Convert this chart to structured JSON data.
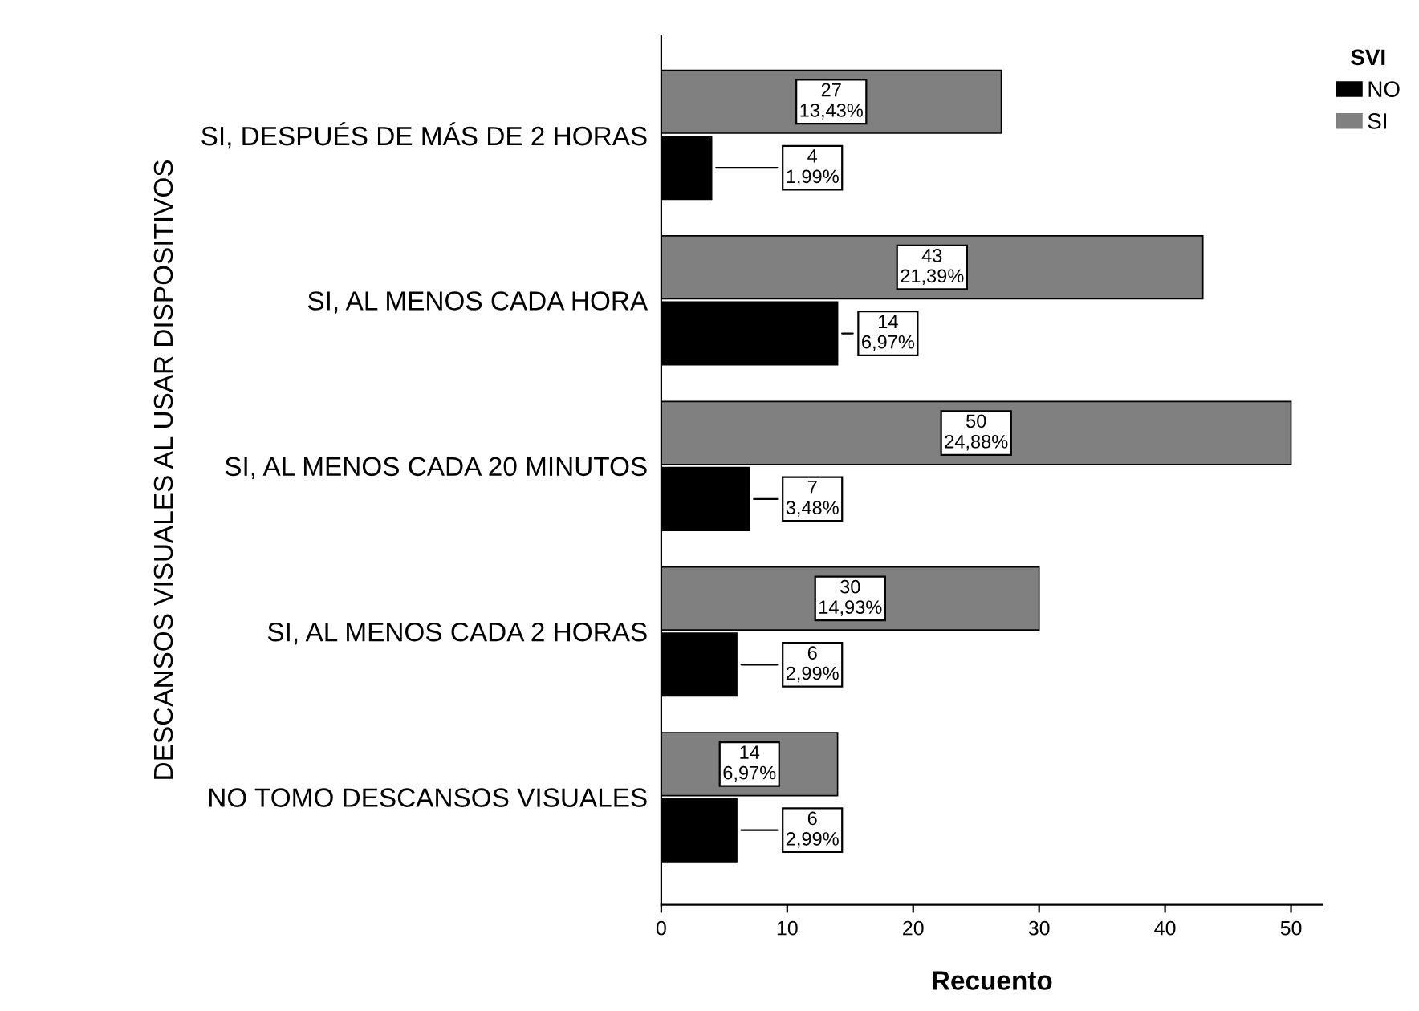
{
  "chart_data": {
    "type": "bar",
    "orientation": "horizontal",
    "xlabel": "Recuento",
    "ylabel": "DESCANSOS VISUALES AL USAR DISPOSITIVOS",
    "legend_title": "SVI",
    "legend": "top right",
    "categories": [
      "SI, DESPUÉS DE MÁS DE 2 HORAS",
      "SI, AL MENOS CADA HORA",
      "SI, AL MENOS CADA 20 MINUTOS",
      "SI, AL MENOS CADA 2 HORAS",
      "NO TOMO DESCANSOS VISUALES"
    ],
    "series": [
      {
        "name": "NO",
        "color": "#000000",
        "values": [
          4,
          14,
          7,
          6,
          6
        ],
        "value_labels": [
          "4\n1,99%",
          "14\n6,97%",
          "7\n3,48%",
          "6\n2,99%",
          "6\n2,99%"
        ]
      },
      {
        "name": "SI",
        "color": "#808080",
        "values": [
          27,
          43,
          50,
          30,
          14
        ],
        "value_labels": [
          "27\n13,43%",
          "43\n21,39%",
          "50\n24,88%",
          "30\n14,93%",
          "14\n6,97%"
        ]
      }
    ],
    "xlim": [
      0,
      52.5
    ],
    "xticks": [
      0,
      10,
      20,
      30,
      40,
      50
    ],
    "grid": false
  }
}
